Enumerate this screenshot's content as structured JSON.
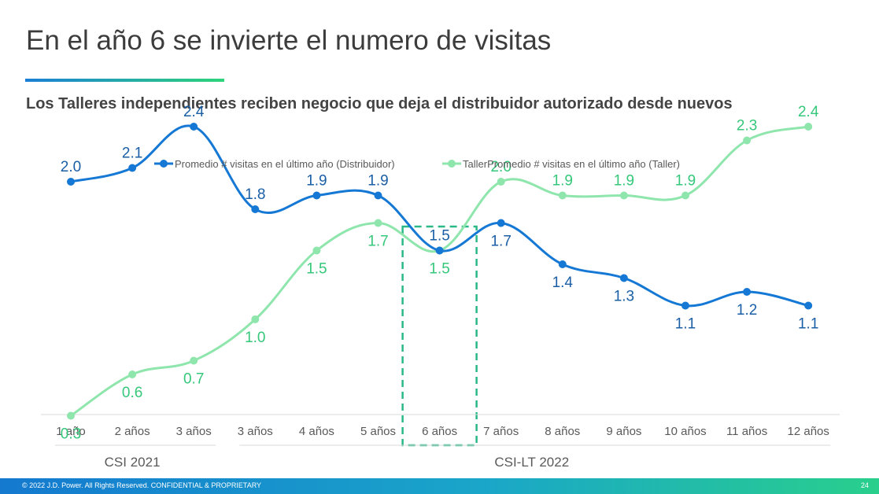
{
  "slide": {
    "title": "En el año 6 se invierte el numero de visitas",
    "subtitle": "Los Talleres independientes reciben negocio que deja el distribuidor autorizado desde nuevos"
  },
  "footer": {
    "text": "© 2022 J.D. Power. All Rights Reserved. CONFIDENTIAL & PROPRIETARY",
    "page": "24"
  },
  "chart_data": {
    "type": "line",
    "categories": [
      "1 año",
      "2 años",
      "3 años",
      "3 años",
      "4 años",
      "5 años",
      "6 años",
      "7 años",
      "8 años",
      "9 años",
      "10 años",
      "11 años",
      "12 años"
    ],
    "series": [
      {
        "name": "Promedio # visitas en el último año (Distribuidor)",
        "color": "#1478d4",
        "label_color": "#1a5fa6",
        "values": [
          2.0,
          2.1,
          2.4,
          1.8,
          1.9,
          1.9,
          1.5,
          1.7,
          1.4,
          1.3,
          1.1,
          1.2,
          1.1
        ]
      },
      {
        "name": "TallerPromedio # visitas en el último año (Taller)",
        "color": "#8fe6ad",
        "label_color": "#35c77a",
        "values": [
          0.3,
          0.6,
          0.7,
          1.0,
          1.5,
          1.7,
          1.5,
          2.0,
          1.9,
          1.9,
          1.9,
          2.3,
          2.4
        ]
      }
    ],
    "groups": [
      {
        "label": "CSI 2021",
        "from_index": 0,
        "to_index": 2
      },
      {
        "label": "CSI-LT 2022",
        "from_index": 3,
        "to_index": 12
      }
    ],
    "highlight": {
      "category_index": 6,
      "color": "#2bb887"
    },
    "legend": "top",
    "grid": false
  }
}
